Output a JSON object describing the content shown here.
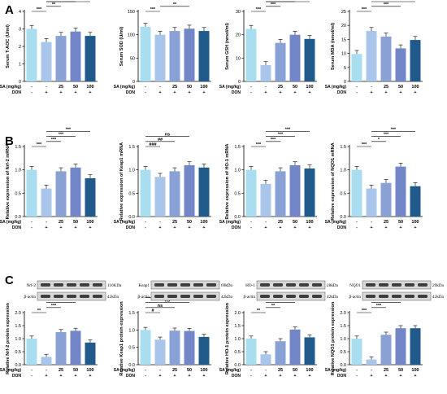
{
  "panels": {
    "A": "A",
    "B": "B",
    "C": "C"
  },
  "treatment_rows": {
    "sa_label": "SA (mg/kg)",
    "don_label": "DON",
    "sa_values": [
      "-",
      "-",
      "25",
      "50",
      "100"
    ],
    "don_values": [
      "-",
      "+",
      "+",
      "+",
      "+"
    ]
  },
  "colors": {
    "bars": [
      "#a9def0",
      "#a9c6ea",
      "#8aa1d6",
      "#7386c8",
      "#1f5a8b"
    ],
    "axis": "#000000"
  },
  "blots": [
    {
      "rows": [
        {
          "left": "Nrf-2",
          "right": "110KDa"
        },
        {
          "left": "β-actin",
          "right": "42kDa"
        }
      ]
    },
    {
      "rows": [
        {
          "left": "Keap1",
          "right": "69kDa"
        },
        {
          "left": "β-actin",
          "right": "42kDa"
        }
      ]
    },
    {
      "rows": [
        {
          "left": "HO-1",
          "right": "28kDa"
        },
        {
          "left": "β-actin",
          "right": "42kDa"
        }
      ]
    },
    {
      "rows": [
        {
          "left": "NQO1",
          "right": "29kDa"
        },
        {
          "left": "β-actin",
          "right": "42kDa"
        }
      ]
    }
  ],
  "chart_data": [
    {
      "type": "bar",
      "ylabel": "Serum T-AOC (U/ml)",
      "ylim": [
        0,
        4
      ],
      "yticks": [
        "0",
        "1",
        "2",
        "3",
        "4"
      ],
      "series": [
        {
          "values": [
            3.0,
            2.25,
            2.6,
            2.85,
            2.6
          ]
        }
      ],
      "annotations": [
        {
          "from": 0,
          "to": 1,
          "text": "***"
        },
        {
          "from": 1,
          "to": 2,
          "text": "**"
        },
        {
          "from": 1,
          "to": 3,
          "text": "***"
        },
        {
          "from": 1,
          "to": 4,
          "text": "*"
        }
      ]
    },
    {
      "type": "bar",
      "ylabel": "Serum SOD (U/ml)",
      "ylim": [
        0,
        150
      ],
      "yticks": [
        "0",
        "50",
        "100",
        "150"
      ],
      "series": [
        {
          "values": [
            117,
            100,
            108,
            113,
            108
          ]
        }
      ],
      "annotations": [
        {
          "from": 0,
          "to": 1,
          "text": "***"
        },
        {
          "from": 1,
          "to": 3,
          "text": "**"
        }
      ]
    },
    {
      "type": "bar",
      "ylabel": "Serum GSH (nmol/ml)",
      "ylim": [
        0,
        30
      ],
      "yticks": [
        "0",
        "10",
        "20",
        "30"
      ],
      "series": [
        {
          "values": [
            22.5,
            7.0,
            16.5,
            20.0,
            18.2
          ]
        }
      ],
      "annotations": [
        {
          "from": 0,
          "to": 1,
          "text": "***"
        },
        {
          "from": 1,
          "to": 2,
          "text": "***"
        },
        {
          "from": 1,
          "to": 3,
          "text": "***"
        },
        {
          "from": 1,
          "to": 4,
          "text": "***"
        }
      ]
    },
    {
      "type": "bar",
      "ylabel": "Serum MDA (nmol/ml)",
      "ylim": [
        0,
        25
      ],
      "yticks": [
        "0",
        "5",
        "10",
        "15",
        "20",
        "25"
      ],
      "series": [
        {
          "values": [
            9.8,
            18.0,
            16.0,
            11.8,
            14.8
          ]
        }
      ],
      "annotations": [
        {
          "from": 0,
          "to": 1,
          "text": "***"
        },
        {
          "from": 1,
          "to": 3,
          "text": "***"
        },
        {
          "from": 1,
          "to": 4,
          "text": "*"
        }
      ]
    },
    {
      "type": "bar",
      "ylabel": "Relative expression of Nrf-2 mRNA",
      "ylim": [
        0,
        1.5
      ],
      "yticks": [
        "0.0",
        "0.5",
        "1.0",
        "1.5"
      ],
      "series": [
        {
          "values": [
            1.0,
            0.6,
            0.97,
            1.05,
            0.82
          ]
        }
      ],
      "annotations": [
        {
          "from": 0,
          "to": 1,
          "text": "***"
        },
        {
          "from": 1,
          "to": 2,
          "text": "***"
        },
        {
          "from": 1,
          "to": 3,
          "text": "***"
        },
        {
          "from": 1,
          "to": 4,
          "text": "***"
        }
      ]
    },
    {
      "type": "bar",
      "ylabel": "Relative expression of Keap1 mRNA",
      "ylim": [
        0,
        1.5
      ],
      "yticks": [
        "0.0",
        "0.5",
        "1.0",
        "1.5"
      ],
      "series": [
        {
          "values": [
            1.0,
            0.85,
            0.97,
            1.1,
            1.05
          ]
        }
      ],
      "annotations": [
        {
          "from": 0,
          "to": 1,
          "text": "###"
        },
        {
          "from": 0,
          "to": 2,
          "text": "##"
        },
        {
          "from": 0,
          "to": 3,
          "text": "ns"
        }
      ]
    },
    {
      "type": "bar",
      "ylabel": "Relative expression of HO-1 mRNA",
      "ylim": [
        0,
        1.5
      ],
      "yticks": [
        "0.0",
        "0.5",
        "1.0",
        "1.5"
      ],
      "series": [
        {
          "values": [
            1.0,
            0.7,
            0.97,
            1.1,
            1.03
          ]
        }
      ],
      "annotations": [
        {
          "from": 0,
          "to": 1,
          "text": "***"
        },
        {
          "from": 1,
          "to": 2,
          "text": "***"
        },
        {
          "from": 1,
          "to": 3,
          "text": "***"
        },
        {
          "from": 1,
          "to": 4,
          "text": "***"
        }
      ]
    },
    {
      "type": "bar",
      "ylabel": "Relative expression of NQO1 mRNA",
      "ylim": [
        0,
        1.5
      ],
      "yticks": [
        "0.0",
        "0.5",
        "1.0",
        "1.5"
      ],
      "series": [
        {
          "values": [
            1.0,
            0.6,
            0.72,
            1.07,
            0.65
          ]
        }
      ],
      "annotations": [
        {
          "from": 0,
          "to": 1,
          "text": "***"
        },
        {
          "from": 1,
          "to": 2,
          "text": "*"
        },
        {
          "from": 1,
          "to": 3,
          "text": "***"
        },
        {
          "from": 1,
          "to": 4,
          "text": "***"
        }
      ]
    },
    {
      "type": "bar",
      "ylabel": "Relative Nrf-2 protein expression",
      "ylim": [
        0,
        2.0
      ],
      "yticks": [
        "0.0",
        "0.5",
        "1.0",
        "1.5",
        "2.0"
      ],
      "series": [
        {
          "values": [
            1.0,
            0.3,
            1.25,
            1.3,
            0.85
          ]
        }
      ],
      "annotations": [
        {
          "from": 0,
          "to": 1,
          "text": "**"
        },
        {
          "from": 1,
          "to": 2,
          "text": "***"
        },
        {
          "from": 1,
          "to": 3,
          "text": "***"
        },
        {
          "from": 1,
          "to": 4,
          "text": "**"
        }
      ]
    },
    {
      "type": "bar",
      "ylabel": "Relative Keap1 protein expression",
      "ylim": [
        0,
        1.5
      ],
      "yticks": [
        "0.0",
        "0.5",
        "1.0",
        "1.5"
      ],
      "series": [
        {
          "values": [
            1.0,
            0.72,
            0.98,
            0.97,
            0.8
          ]
        }
      ],
      "annotations": [
        {
          "from": 0,
          "to": 1,
          "text": "#"
        },
        {
          "from": 0,
          "to": 2,
          "text": "ns"
        },
        {
          "from": 0,
          "to": 3,
          "text": "ns"
        },
        {
          "from": 0,
          "to": 4,
          "text": "ns"
        }
      ]
    },
    {
      "type": "bar",
      "ylabel": "Relative HO-1 protein expression",
      "ylim": [
        0,
        2.0
      ],
      "yticks": [
        "0.0",
        "0.5",
        "1.0",
        "1.5",
        "2.0"
      ],
      "series": [
        {
          "values": [
            1.0,
            0.4,
            0.9,
            1.35,
            1.05
          ]
        }
      ],
      "annotations": [
        {
          "from": 0,
          "to": 1,
          "text": "**"
        },
        {
          "from": 1,
          "to": 2,
          "text": "**"
        },
        {
          "from": 1,
          "to": 3,
          "text": "***"
        },
        {
          "from": 1,
          "to": 4,
          "text": "**"
        }
      ]
    },
    {
      "type": "bar",
      "ylabel": "Relative NQO1 protein expression",
      "ylim": [
        0,
        2.0
      ],
      "yticks": [
        "0.0",
        "0.5",
        "1.0",
        "1.5",
        "2.0"
      ],
      "series": [
        {
          "values": [
            1.0,
            0.2,
            1.15,
            1.4,
            1.4
          ]
        }
      ],
      "annotations": [
        {
          "from": 0,
          "to": 1,
          "text": "***"
        },
        {
          "from": 1,
          "to": 2,
          "text": "***"
        },
        {
          "from": 1,
          "to": 3,
          "text": "***"
        },
        {
          "from": 1,
          "to": 4,
          "text": "***"
        }
      ]
    }
  ]
}
